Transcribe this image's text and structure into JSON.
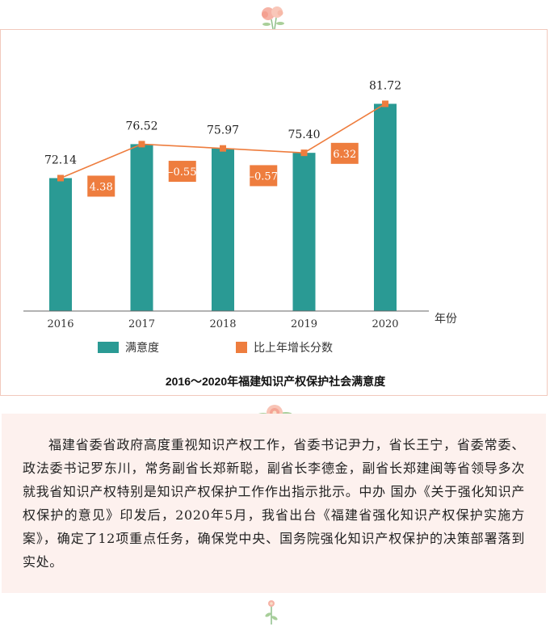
{
  "chart_data": {
    "type": "bar",
    "categories": [
      "2016",
      "2017",
      "2018",
      "2019",
      "2020"
    ],
    "series": [
      {
        "name": "满意度",
        "type": "bar",
        "values": [
          72.14,
          76.52,
          75.97,
          75.4,
          81.72
        ],
        "color": "#2a9a94"
      },
      {
        "name": "比上年增长分数",
        "type": "line",
        "values": [
          null,
          4.38,
          -0.55,
          -0.57,
          6.32
        ],
        "color": "#ee7d3e"
      }
    ],
    "bar_value_labels": [
      "72.14",
      "76.52",
      "75.97",
      "75.40",
      "81.72"
    ],
    "change_labels": [
      "4.38",
      "–0.55",
      "–0.57",
      "6.32"
    ],
    "title": "2016～2020年福建知识产权保护社会满意度",
    "xlabel": "年份",
    "ylabel": "",
    "ylim": [
      55,
      85
    ],
    "grid": false,
    "legend_position": "bottom"
  },
  "paragraph": "福建省委省政府高度重视知识产权工作，省委书记尹力，省长王宁，省委常委、政法委书记罗东川，常务副省长郑新聪，副省长李德金，副省长郑建闽等省领导多次就我省知识产权特别是知识产权保护工作作出指示批示。中办 国办《关于强化知识产权保护的意见》印发后，2020年5月，我省出台《福建省强化知识产权保护实施方案》，确定了12项重点任务，确保党中央、国务院强化知识产权保护的决策部署落到实处。",
  "colors": {
    "bar": "#2a9a94",
    "line": "#ee7d3e",
    "panel_border": "#f2c9bd",
    "text_bg": "#fdf1ee"
  },
  "icons": {
    "top": "flower-icon",
    "middle": "flower-icon",
    "bottom": "flower-sprig-icon"
  }
}
